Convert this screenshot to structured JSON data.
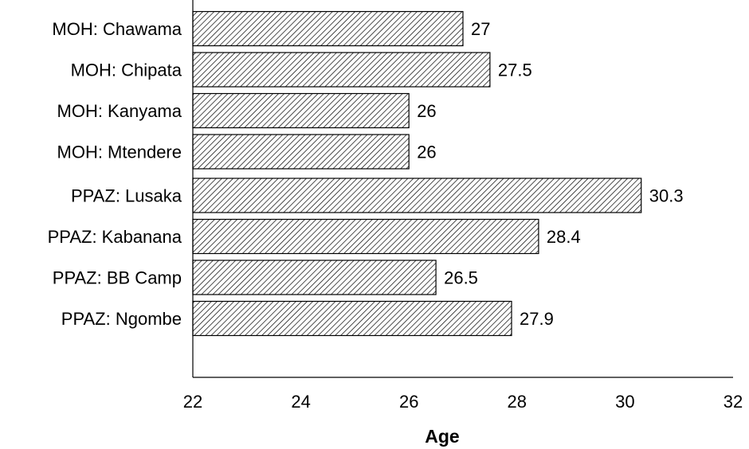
{
  "chart_data": {
    "type": "bar",
    "orientation": "horizontal",
    "title": "",
    "xlabel": "Age",
    "ylabel": "",
    "xlim": [
      22,
      32
    ],
    "xticks": [
      22,
      24,
      26,
      28,
      30,
      32
    ],
    "grid": false,
    "legend": "none",
    "bar_fill": "hatched",
    "groups": [
      {
        "categories": [
          "MOH: Chawama",
          "MOH: Chipata",
          "MOH: Kanyama",
          "MOH: Mtendere"
        ],
        "values": [
          27,
          27.5,
          26,
          26
        ]
      },
      {
        "categories": [
          "PPAZ: Lusaka",
          "PPAZ: Kabanana",
          "PPAZ: BB Camp",
          "PPAZ: Ngombe"
        ],
        "values": [
          30.3,
          28.4,
          26.5,
          27.9
        ]
      }
    ]
  }
}
